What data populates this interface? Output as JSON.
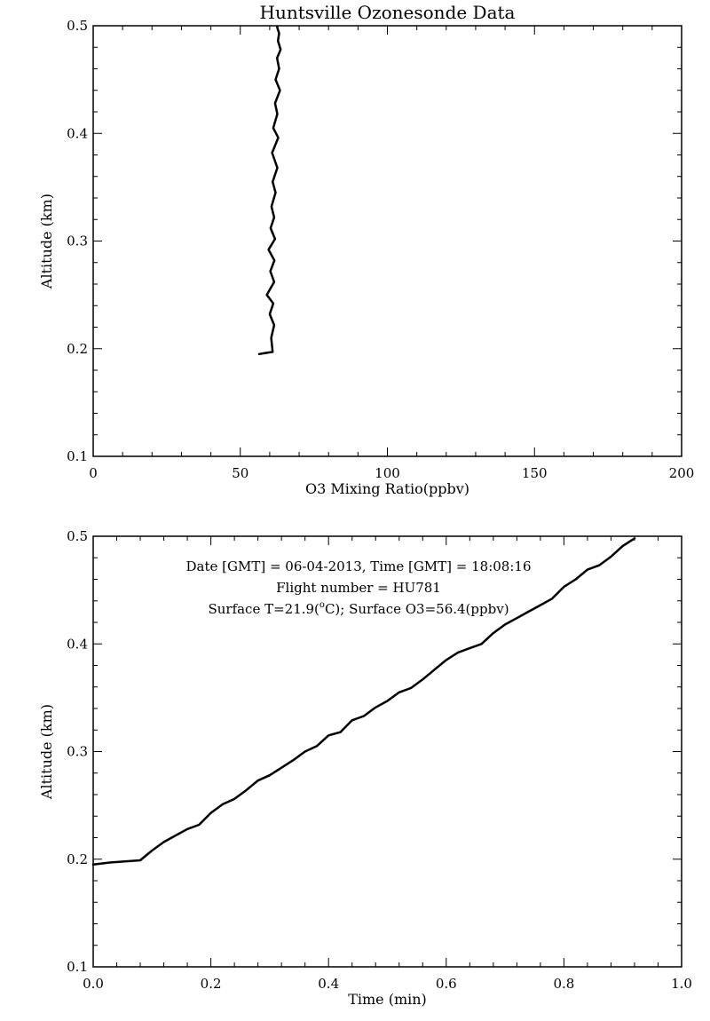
{
  "chart_data": [
    {
      "type": "line",
      "title": "Huntsville Ozonesonde Data",
      "xlabel": "O3 Mixing Ratio(ppbv)",
      "ylabel": "Altitude (km)",
      "xlim": [
        0,
        200
      ],
      "ylim": [
        0.1,
        0.5
      ],
      "xticks": [
        0,
        50,
        100,
        150,
        200
      ],
      "xtick_labels": [
        "0",
        "50",
        "100",
        "150",
        "200"
      ],
      "yticks": [
        0.1,
        0.2,
        0.3,
        0.4,
        0.5
      ],
      "ytick_labels": [
        "0.1",
        "0.2",
        "0.3",
        "0.4",
        "0.5"
      ],
      "grid": false,
      "series": [
        {
          "x": [
            56.4,
            58.5,
            61.0,
            60.5,
            61.5,
            60.0,
            61.2,
            59.0,
            61.5,
            60.2,
            61.6,
            59.6,
            61.8,
            60.3,
            61.5,
            60.6,
            62.0,
            61.0,
            62.6,
            60.8,
            62.9,
            61.2,
            62.6,
            61.8,
            63.5,
            62.0,
            63.2,
            62.5,
            63.7,
            62.8,
            63.2,
            62.5
          ],
          "y": [
            0.195,
            0.196,
            0.197,
            0.21,
            0.222,
            0.232,
            0.242,
            0.25,
            0.262,
            0.272,
            0.282,
            0.292,
            0.302,
            0.312,
            0.322,
            0.332,
            0.345,
            0.355,
            0.368,
            0.382,
            0.396,
            0.405,
            0.418,
            0.428,
            0.44,
            0.45,
            0.46,
            0.47,
            0.478,
            0.486,
            0.493,
            0.499
          ]
        }
      ]
    },
    {
      "type": "line",
      "xlabel": "Time (min)",
      "ylabel": "Altitude (km)",
      "xlim": [
        0.0,
        1.0
      ],
      "ylim": [
        0.1,
        0.5
      ],
      "xticks": [
        0.0,
        0.2,
        0.4,
        0.6,
        0.8,
        1.0
      ],
      "xtick_labels": [
        "0.0",
        "0.2",
        "0.4",
        "0.6",
        "0.8",
        "1.0"
      ],
      "yticks": [
        0.1,
        0.2,
        0.3,
        0.4,
        0.5
      ],
      "ytick_labels": [
        "0.1",
        "0.2",
        "0.3",
        "0.4",
        "0.5"
      ],
      "grid": false,
      "annotations": [
        "Date [GMT] = 06-04-2013,  Time [GMT] = 18:08:16",
        "Flight number = HU781",
        "Surface T=21.9(",
        "o",
        "C); Surface O3=56.4(ppbv)"
      ],
      "series": [
        {
          "x": [
            0.0,
            0.03,
            0.08,
            0.1,
            0.12,
            0.16,
            0.18,
            0.2,
            0.22,
            0.24,
            0.26,
            0.28,
            0.3,
            0.32,
            0.34,
            0.36,
            0.38,
            0.4,
            0.42,
            0.44,
            0.46,
            0.48,
            0.5,
            0.52,
            0.54,
            0.56,
            0.58,
            0.6,
            0.62,
            0.64,
            0.66,
            0.68,
            0.7,
            0.72,
            0.74,
            0.76,
            0.78,
            0.8,
            0.82,
            0.84,
            0.86,
            0.88,
            0.9,
            0.92
          ],
          "y": [
            0.195,
            0.197,
            0.199,
            0.208,
            0.216,
            0.228,
            0.232,
            0.243,
            0.251,
            0.256,
            0.264,
            0.273,
            0.278,
            0.285,
            0.292,
            0.3,
            0.305,
            0.315,
            0.318,
            0.329,
            0.333,
            0.341,
            0.347,
            0.355,
            0.359,
            0.367,
            0.376,
            0.385,
            0.392,
            0.396,
            0.4,
            0.41,
            0.418,
            0.424,
            0.43,
            0.436,
            0.442,
            0.453,
            0.46,
            0.469,
            0.473,
            0.481,
            0.491,
            0.498
          ]
        }
      ]
    }
  ]
}
